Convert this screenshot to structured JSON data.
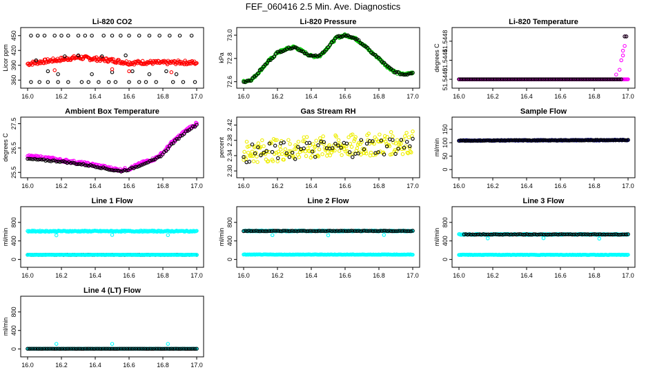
{
  "title": "FEF_060416  2.5 Min. Ave. Diagnostics",
  "chart_data": [
    {
      "type": "scatter",
      "title": "Li-820 CO2",
      "ylabel": "Licor ppm",
      "xlim": [
        16.0,
        17.0
      ],
      "ylim": [
        352,
        458
      ],
      "xticks": [
        "16.0",
        "16.2",
        "16.4",
        "16.6",
        "16.8",
        "17.0"
      ],
      "yticks": [
        "360",
        "390",
        "420",
        "450"
      ],
      "series": [
        {
          "color": "#ff0000",
          "pattern": "band",
          "x": [
            16.0,
            16.1,
            16.2,
            16.3,
            16.4,
            16.5,
            16.6,
            16.7,
            16.8,
            16.9,
            17.0
          ],
          "y": [
            393,
            398,
            402,
            406,
            403,
            400,
            395,
            396,
            395,
            396,
            395
          ],
          "spread": 4
        },
        {
          "color": "#000000",
          "pattern": "outliers",
          "x": [
            16.02,
            16.06,
            16.1,
            16.16,
            16.2,
            16.24,
            16.3,
            16.34,
            16.38,
            16.45,
            16.5,
            16.55,
            16.6,
            16.66,
            16.72,
            16.78,
            16.84,
            16.9,
            16.97
          ],
          "y": [
            450,
            450,
            450,
            450,
            450,
            450,
            450,
            450,
            450,
            450,
            450,
            450,
            450,
            450,
            450,
            450,
            450,
            450,
            450
          ]
        },
        {
          "color": "#000000",
          "pattern": "outliers",
          "x": [
            16.02,
            16.07,
            16.12,
            16.18,
            16.24,
            16.32,
            16.36,
            16.42,
            16.48,
            16.52,
            16.6,
            16.66,
            16.7,
            16.76,
            16.86,
            16.92,
            16.99
          ],
          "y": [
            356,
            356,
            356,
            356,
            356,
            356,
            356,
            356,
            356,
            356,
            356,
            356,
            356,
            356,
            356,
            356,
            356
          ]
        },
        {
          "color": "#000000",
          "pattern": "outliers",
          "x": [
            16.05,
            16.12,
            16.18,
            16.22,
            16.3,
            16.38,
            16.44,
            16.5,
            16.58,
            16.62,
            16.72,
            16.82,
            16.88
          ],
          "y": [
            400,
            378,
            372,
            408,
            410,
            372,
            408,
            376,
            410,
            378,
            372,
            378,
            372
          ]
        },
        {
          "color": "#ff0000",
          "pattern": "outliers",
          "x": [
            16.16,
            16.5,
            16.6,
            16.85
          ],
          "y": [
            380,
            382,
            378,
            376
          ]
        }
      ]
    },
    {
      "type": "scatter",
      "title": "Li-820 Pressure",
      "ylabel": "kPa",
      "xlim": [
        16.0,
        17.0
      ],
      "ylim": [
        72.58,
        73.03
      ],
      "xticks": [
        "16.0",
        "16.2",
        "16.4",
        "16.6",
        "16.8",
        "17.0"
      ],
      "yticks": [
        "72.6",
        "72.8",
        "73.0"
      ],
      "series": [
        {
          "color": "#00cc00",
          "pattern": "curve",
          "x": [
            16.0,
            16.05,
            16.1,
            16.15,
            16.2,
            16.25,
            16.3,
            16.35,
            16.4,
            16.45,
            16.5,
            16.55,
            16.6,
            16.65,
            16.7,
            16.75,
            16.8,
            16.85,
            16.9,
            16.95,
            17.0
          ],
          "y": [
            72.6,
            72.62,
            72.7,
            72.78,
            72.85,
            72.88,
            72.9,
            72.86,
            72.82,
            72.82,
            72.9,
            72.98,
            73.0,
            72.98,
            72.93,
            72.86,
            72.8,
            72.73,
            72.68,
            72.66,
            72.68
          ],
          "spread": 0.01
        },
        {
          "color": "#000000",
          "pattern": "curve-sparse",
          "x": [
            16.0,
            16.05,
            16.1,
            16.15,
            16.2,
            16.25,
            16.3,
            16.35,
            16.4,
            16.45,
            16.5,
            16.55,
            16.6,
            16.65,
            16.7,
            16.75,
            16.8,
            16.85,
            16.9,
            16.95,
            17.0
          ],
          "y": [
            72.6,
            72.62,
            72.7,
            72.78,
            72.85,
            72.88,
            72.9,
            72.86,
            72.82,
            72.82,
            72.9,
            72.98,
            73.0,
            72.98,
            72.93,
            72.86,
            72.8,
            72.73,
            72.68,
            72.66,
            72.68
          ],
          "spread": 0.008
        }
      ]
    },
    {
      "type": "scatter",
      "title": "Li-820 Temperature",
      "ylabel": "degrees C",
      "xlim": [
        16.0,
        17.0
      ],
      "ylim": [
        51.5439,
        51.545
      ],
      "xticks": [
        "16.0",
        "16.2",
        "16.4",
        "16.6",
        "16.8",
        "17.0"
      ],
      "yticks": [
        "51.5440",
        "51.5444",
        "51.5448"
      ],
      "series": [
        {
          "color": "#ff00ff",
          "pattern": "flat",
          "x": [
            16.0,
            17.0
          ],
          "y": [
            51.544,
            51.544
          ],
          "spread": 0
        },
        {
          "color": "#000000",
          "pattern": "flat-sparse",
          "x": [
            16.0,
            16.96
          ],
          "y": [
            51.544,
            51.544
          ],
          "spread": 0
        },
        {
          "color": "#ff00ff",
          "pattern": "outliers",
          "x": [
            16.93,
            16.95,
            16.96,
            16.97,
            16.97,
            16.98,
            16.98,
            16.99
          ],
          "y": [
            51.5441,
            51.5442,
            51.5444,
            51.5445,
            51.5446,
            51.5447,
            51.5449,
            51.5449
          ]
        },
        {
          "color": "#000000",
          "pattern": "outliers",
          "x": [
            16.98,
            16.99
          ],
          "y": [
            51.5449,
            51.5449
          ]
        }
      ]
    },
    {
      "type": "scatter",
      "title": "Ambient Box Temperature",
      "ylabel": "degrees C",
      "xlim": [
        16.0,
        17.0
      ],
      "ylim": [
        25.45,
        27.6
      ],
      "xticks": [
        "16.0",
        "16.2",
        "16.4",
        "16.6",
        "16.8",
        "17.0"
      ],
      "yticks": [
        "25.5",
        "26.5",
        "27.5"
      ],
      "series": [
        {
          "color": "#ff00ff",
          "pattern": "curve",
          "x": [
            16.0,
            16.1,
            16.2,
            16.3,
            16.4,
            16.5,
            16.55,
            16.6,
            16.65,
            16.7,
            16.75,
            16.8,
            16.85,
            16.9,
            16.95,
            17.0
          ],
          "y": [
            26.15,
            26.1,
            26.0,
            25.9,
            25.8,
            25.65,
            25.6,
            25.65,
            25.8,
            25.95,
            26.05,
            26.3,
            26.7,
            27.0,
            27.3,
            27.5
          ],
          "spread": 0.06
        },
        {
          "color": "#000000",
          "pattern": "curve-sparse",
          "x": [
            16.0,
            16.1,
            16.2,
            16.3,
            16.4,
            16.5,
            16.55,
            16.6,
            16.65,
            16.7,
            16.75,
            16.8,
            16.85,
            16.9,
            16.95,
            17.0
          ],
          "y": [
            26.05,
            26.0,
            25.95,
            25.85,
            25.75,
            25.6,
            25.55,
            25.62,
            25.75,
            25.9,
            26.0,
            26.25,
            26.65,
            26.95,
            27.25,
            27.45
          ],
          "spread": 0.03
        }
      ]
    },
    {
      "type": "scatter",
      "title": "Gas Stream RH",
      "ylabel": "percent",
      "xlim": [
        16.0,
        17.0
      ],
      "ylim": [
        2.293,
        2.43
      ],
      "xticks": [
        "16.0",
        "16.2",
        "16.4",
        "16.6",
        "16.8",
        "17.0"
      ],
      "yticks": [
        "2.30",
        "2.34",
        "2.38",
        "2.42"
      ],
      "series": [
        {
          "color": "#eeee00",
          "pattern": "cloud",
          "x": [
            16.0,
            17.0
          ],
          "y": [
            2.35,
            2.375
          ],
          "spread": 0.03
        },
        {
          "color": "#000000",
          "pattern": "cloud-sparse",
          "x": [
            16.0,
            17.0
          ],
          "y": [
            2.345,
            2.37
          ],
          "spread": 0.025
        }
      ]
    },
    {
      "type": "scatter",
      "title": "Sample Flow",
      "ylabel": "ml/min",
      "xlim": [
        16.0,
        17.0
      ],
      "ylim": [
        -15,
        180
      ],
      "xticks": [
        "16.0",
        "16.2",
        "16.4",
        "16.6",
        "16.8",
        "17.0"
      ],
      "yticks": [
        "0",
        "50",
        "100",
        "150"
      ],
      "series": [
        {
          "color": "#000080",
          "pattern": "flat",
          "x": [
            16.0,
            17.0
          ],
          "y": [
            108,
            110
          ],
          "spread": 1.5
        },
        {
          "color": "#000000",
          "pattern": "flat-sparse",
          "x": [
            16.0,
            17.0
          ],
          "y": [
            108,
            110
          ],
          "spread": 1
        }
      ]
    },
    {
      "type": "scatter",
      "title": "Line 1 Flow",
      "ylabel": "ml/min",
      "xlim": [
        16.0,
        17.0
      ],
      "ylim": [
        -80,
        1050
      ],
      "xticks": [
        "16.0",
        "16.2",
        "16.4",
        "16.6",
        "16.8",
        "17.0"
      ],
      "yticks": [
        "0",
        "400",
        "800"
      ],
      "series": [
        {
          "color": "#00ffff",
          "pattern": "flat",
          "x": [
            16.0,
            17.0
          ],
          "y": [
            610,
            610
          ],
          "spread": 12
        },
        {
          "color": "#000000",
          "pattern": "flat-sparse",
          "x": [
            16.0,
            17.0
          ],
          "y": [
            100,
            100
          ],
          "spread": 3
        },
        {
          "color": "#00ffff",
          "pattern": "flat",
          "x": [
            16.0,
            17.0
          ],
          "y": [
            100,
            100
          ],
          "spread": 3
        },
        {
          "color": "#00ffff",
          "pattern": "outliers",
          "x": [
            16.17,
            16.5,
            16.83
          ],
          "y": [
            520,
            530,
            525
          ]
        }
      ]
    },
    {
      "type": "scatter",
      "title": "Line 2 Flow",
      "ylabel": "ml/min",
      "xlim": [
        16.0,
        17.0
      ],
      "ylim": [
        -80,
        1050
      ],
      "xticks": [
        "16.0",
        "16.2",
        "16.4",
        "16.6",
        "16.8",
        "17.0"
      ],
      "yticks": [
        "0",
        "400",
        "800"
      ],
      "series": [
        {
          "color": "#00ffff",
          "pattern": "flat",
          "x": [
            16.0,
            17.0
          ],
          "y": [
            615,
            615
          ],
          "spread": 10
        },
        {
          "color": "#000000",
          "pattern": "flat-sparse",
          "x": [
            16.0,
            17.0
          ],
          "y": [
            615,
            615
          ],
          "spread": 6
        },
        {
          "color": "#00ffff",
          "pattern": "flat",
          "x": [
            16.0,
            17.0
          ],
          "y": [
            105,
            105
          ],
          "spread": 4
        },
        {
          "color": "#00ffff",
          "pattern": "outliers",
          "x": [
            16.17,
            16.5,
            16.83
          ],
          "y": [
            525,
            520,
            530
          ]
        }
      ]
    },
    {
      "type": "scatter",
      "title": "Line 3 Flow",
      "ylabel": "ml/min",
      "xlim": [
        16.0,
        17.0
      ],
      "ylim": [
        -80,
        1050
      ],
      "xticks": [
        "16.0",
        "16.2",
        "16.4",
        "16.6",
        "16.8",
        "17.0"
      ],
      "yticks": [
        "0",
        "400",
        "800"
      ],
      "series": [
        {
          "color": "#00ffff",
          "pattern": "flat",
          "x": [
            16.0,
            17.0
          ],
          "y": [
            540,
            540
          ],
          "spread": 10
        },
        {
          "color": "#000000",
          "pattern": "flat-sparse",
          "x": [
            16.03,
            17.0
          ],
          "y": [
            540,
            540
          ],
          "spread": 6
        },
        {
          "color": "#00ffff",
          "pattern": "flat",
          "x": [
            16.0,
            17.0
          ],
          "y": [
            100,
            100
          ],
          "spread": 5
        },
        {
          "color": "#00ffff",
          "pattern": "outliers",
          "x": [
            16.17,
            16.5,
            16.83
          ],
          "y": [
            455,
            460,
            450
          ]
        }
      ]
    },
    {
      "type": "scatter",
      "title": "Line 4 (LT) Flow",
      "ylabel": "ml/min",
      "xlim": [
        16.0,
        17.0
      ],
      "ylim": [
        -80,
        1050
      ],
      "xticks": [
        "16.0",
        "16.2",
        "16.4",
        "16.6",
        "16.8",
        "17.0"
      ],
      "yticks": [
        "0",
        "400",
        "800"
      ],
      "series": [
        {
          "color": "#00ffff",
          "pattern": "flat",
          "x": [
            16.0,
            17.0
          ],
          "y": [
            5,
            5
          ],
          "spread": 2
        },
        {
          "color": "#000000",
          "pattern": "flat-sparse",
          "x": [
            16.0,
            17.0
          ],
          "y": [
            5,
            5
          ],
          "spread": 2
        },
        {
          "color": "#00ffff",
          "pattern": "outliers",
          "x": [
            16.17,
            16.5,
            16.83
          ],
          "y": [
            110,
            110,
            110
          ]
        }
      ]
    }
  ]
}
